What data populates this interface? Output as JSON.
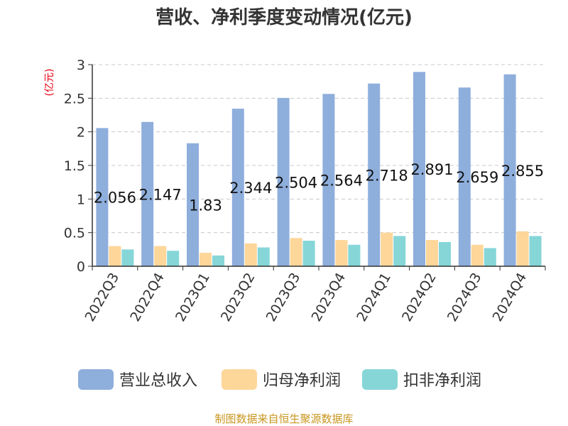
{
  "chart_data": {
    "type": "bar",
    "title": "营收、净利季度变动情况(亿元)",
    "ylabel": "(亿元)",
    "xlabel": "",
    "ylim": [
      0,
      3
    ],
    "yticks": [
      0,
      0.5,
      1,
      1.5,
      2,
      2.5,
      3
    ],
    "ytick_labels": [
      "0",
      "0.5",
      "1",
      "1.5",
      "2",
      "2.5",
      "3"
    ],
    "grid": true,
    "legend_position": "bottom",
    "categories": [
      "2022Q3",
      "2022Q4",
      "2023Q1",
      "2023Q2",
      "2023Q3",
      "2023Q4",
      "2024Q1",
      "2024Q2",
      "2024Q3",
      "2024Q4"
    ],
    "series": [
      {
        "name": "营业总收入",
        "color": "#8eaedc",
        "values": [
          2.056,
          2.147,
          1.83,
          2.344,
          2.504,
          2.564,
          2.718,
          2.891,
          2.659,
          2.855
        ],
        "data_labels": [
          "2.056",
          "2.147",
          "1.83",
          "2.344",
          "2.504",
          "2.564",
          "2.718",
          "2.891",
          "2.659",
          "2.855"
        ]
      },
      {
        "name": "归母净利润",
        "color": "#fdd699",
        "values": [
          0.3,
          0.3,
          0.2,
          0.34,
          0.42,
          0.39,
          0.5,
          0.39,
          0.32,
          0.52
        ]
      },
      {
        "name": "扣非净利润",
        "color": "#86d6d8",
        "values": [
          0.25,
          0.23,
          0.16,
          0.28,
          0.38,
          0.32,
          0.45,
          0.36,
          0.27,
          0.45
        ]
      }
    ],
    "source": "制图数据来自恒生聚源数据库"
  }
}
